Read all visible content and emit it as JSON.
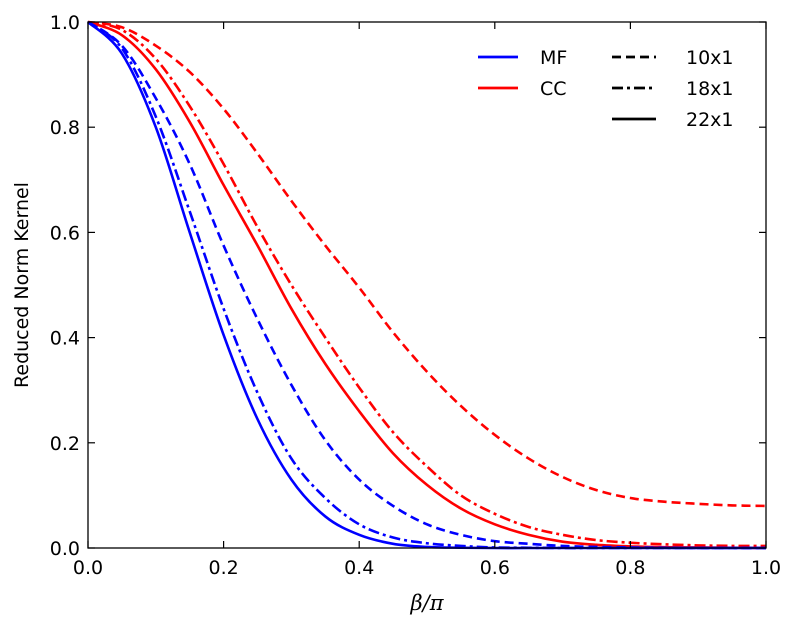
{
  "chart_data": {
    "type": "line",
    "title": "",
    "xlabel": "β/π",
    "ylabel": "Reduced Norm Kernel",
    "xlim": [
      0.0,
      1.0
    ],
    "ylim": [
      0.0,
      1.0
    ],
    "xticks": [
      "0.0",
      "0.2",
      "0.4",
      "0.6",
      "0.8",
      "1.0"
    ],
    "yticks": [
      "0.0",
      "0.2",
      "0.4",
      "0.6",
      "0.8",
      "1.0"
    ],
    "grid": false,
    "legend_position": "top-right",
    "legend": {
      "colors": [
        {
          "label": "MF",
          "color": "#0000ff"
        },
        {
          "label": "CC",
          "color": "#ff0000"
        }
      ],
      "styles": [
        {
          "label": "10x1",
          "dash": "dashed"
        },
        {
          "label": "18x1",
          "dash": "dashdot"
        },
        {
          "label": "22x1",
          "dash": "solid"
        }
      ]
    },
    "x": [
      0.0,
      0.05,
      0.1,
      0.15,
      0.2,
      0.25,
      0.3,
      0.35,
      0.4,
      0.45,
      0.5,
      0.55,
      0.6,
      0.65,
      0.7,
      0.75,
      0.8,
      0.85,
      0.9,
      0.95,
      1.0
    ],
    "series": [
      {
        "name": "CC 10x1",
        "group": "CC",
        "size": "10x1",
        "color": "#ff0000",
        "dash": "dashed",
        "values": [
          1.0,
          0.99,
          0.955,
          0.905,
          0.835,
          0.75,
          0.66,
          0.575,
          0.495,
          0.41,
          0.335,
          0.27,
          0.215,
          0.17,
          0.135,
          0.11,
          0.095,
          0.088,
          0.084,
          0.081,
          0.08
        ]
      },
      {
        "name": "CC 18x1",
        "group": "CC",
        "size": "18x1",
        "color": "#ff0000",
        "dash": "dashdot",
        "values": [
          1.0,
          0.985,
          0.93,
          0.84,
          0.73,
          0.61,
          0.5,
          0.4,
          0.305,
          0.22,
          0.155,
          0.1,
          0.065,
          0.04,
          0.025,
          0.015,
          0.01,
          0.007,
          0.005,
          0.004,
          0.004
        ]
      },
      {
        "name": "CC 22x1",
        "group": "CC",
        "size": "22x1",
        "color": "#ff0000",
        "dash": "solid",
        "values": [
          1.0,
          0.975,
          0.91,
          0.81,
          0.69,
          0.575,
          0.455,
          0.35,
          0.26,
          0.18,
          0.12,
          0.075,
          0.045,
          0.025,
          0.012,
          0.006,
          0.003,
          0.0015,
          0.001,
          0.0005,
          0.0
        ]
      },
      {
        "name": "MF 10x1",
        "group": "MF",
        "size": "10x1",
        "color": "#0000ff",
        "dash": "dashed",
        "values": [
          1.0,
          0.955,
          0.855,
          0.73,
          0.575,
          0.435,
          0.31,
          0.205,
          0.13,
          0.08,
          0.045,
          0.025,
          0.013,
          0.008,
          0.004,
          0.002,
          0.001,
          0.0005,
          0.0,
          0.0,
          0.0
        ]
      },
      {
        "name": "MF 18x1",
        "group": "MF",
        "size": "18x1",
        "color": "#0000ff",
        "dash": "dashdot",
        "values": [
          1.0,
          0.95,
          0.82,
          0.64,
          0.455,
          0.295,
          0.17,
          0.095,
          0.045,
          0.02,
          0.009,
          0.004,
          0.001,
          0.0005,
          0.0,
          0.0,
          0.0,
          0.0,
          0.0,
          0.0,
          0.0
        ]
      },
      {
        "name": "MF 22x1",
        "group": "MF",
        "size": "22x1",
        "color": "#0000ff",
        "dash": "solid",
        "values": [
          1.0,
          0.94,
          0.8,
          0.6,
          0.405,
          0.245,
          0.13,
          0.06,
          0.025,
          0.008,
          0.002,
          0.0005,
          0.0,
          0.0,
          0.0,
          0.0,
          0.0,
          0.0,
          0.0,
          0.0,
          0.0
        ]
      }
    ]
  }
}
